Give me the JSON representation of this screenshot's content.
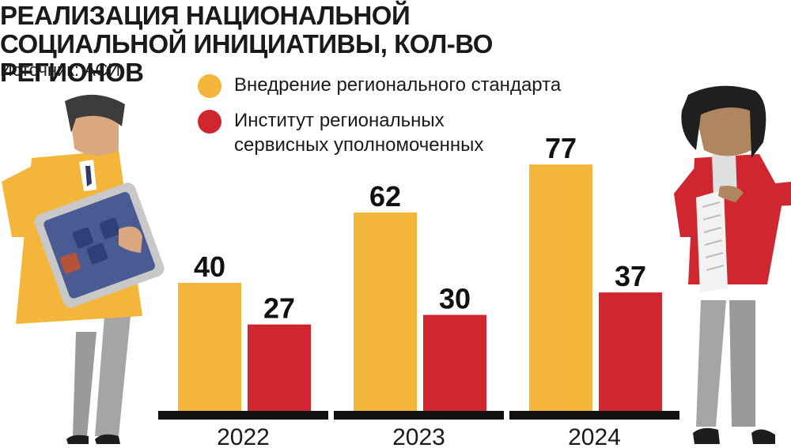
{
  "title": "РЕАЛИЗАЦИЯ НАЦИОНАЛЬНОЙ СОЦИАЛЬНОЙ ИНИЦИАТИВЫ, КОЛ-ВО РЕГИОНОВ",
  "source": "Источник: АСИ",
  "colors": {
    "yellow": "#f3b63a",
    "red": "#d0262f",
    "axis": "#111111"
  },
  "icons": [
    "man-with-calculator-illustration",
    "woman-with-receipt-illustration"
  ],
  "chart_data": {
    "type": "bar",
    "title": "РЕАЛИЗАЦИЯ НАЦИОНАЛЬНОЙ СОЦИАЛЬНОЙ ИНИЦИАТИВЫ, КОЛ-ВО РЕГИОНОВ",
    "categories": [
      "2022",
      "2023",
      "2024"
    ],
    "series": [
      {
        "name": "Внедрение регионального стандарта",
        "values": [
          40,
          62,
          77
        ],
        "color": "#f3b63a"
      },
      {
        "name": "Институт региональных сервисных уполномоченных",
        "values": [
          27,
          30,
          37
        ],
        "color": "#d0262f"
      }
    ],
    "ylim": [
      0,
      100
    ],
    "grid": false,
    "legend": "top",
    "data_labels": true
  }
}
